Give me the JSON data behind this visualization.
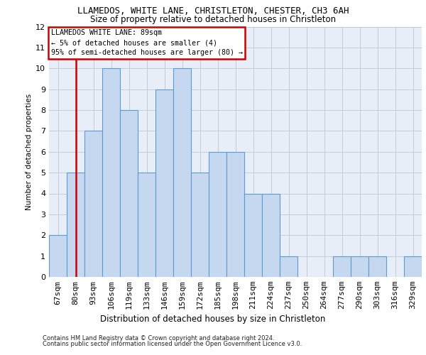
{
  "title1": "LLAMEDOS, WHITE LANE, CHRISTLETON, CHESTER, CH3 6AH",
  "title2": "Size of property relative to detached houses in Christleton",
  "xlabel": "Distribution of detached houses by size in Christleton",
  "ylabel": "Number of detached properties",
  "categories": [
    "67sqm",
    "80sqm",
    "93sqm",
    "106sqm",
    "119sqm",
    "133sqm",
    "146sqm",
    "159sqm",
    "172sqm",
    "185sqm",
    "198sqm",
    "211sqm",
    "224sqm",
    "237sqm",
    "250sqm",
    "264sqm",
    "277sqm",
    "290sqm",
    "303sqm",
    "316sqm",
    "329sqm"
  ],
  "values": [
    2,
    5,
    7,
    10,
    8,
    5,
    9,
    10,
    5,
    6,
    6,
    4,
    4,
    1,
    0,
    0,
    1,
    1,
    1,
    0,
    1
  ],
  "bar_color": "#c5d8f0",
  "bar_edge_color": "#5b9bd5",
  "annotation_line1": "LLAMEDOS WHITE LANE: 89sqm",
  "annotation_line2": "← 5% of detached houses are smaller (4)",
  "annotation_line3": "95% of semi-detached houses are larger (80) →",
  "annotation_box_edge_color": "#cc0000",
  "vline_color": "#cc0000",
  "vline_x_index": 1,
  "ylim_max": 12,
  "yticks": [
    0,
    1,
    2,
    3,
    4,
    5,
    6,
    7,
    8,
    9,
    10,
    11,
    12
  ],
  "grid_color": "#c0ccd8",
  "bg_color": "#e8eef8",
  "footer1": "Contains HM Land Registry data © Crown copyright and database right 2024.",
  "footer2": "Contains public sector information licensed under the Open Government Licence v3.0."
}
